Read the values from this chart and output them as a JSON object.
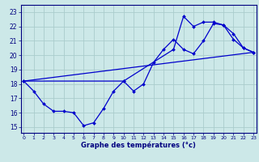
{
  "xlabel": "Graphe des températures (°c)",
  "background_color": "#cce8e8",
  "grid_color": "#aacccc",
  "line_color": "#0000cc",
  "x_ticks": [
    0,
    1,
    2,
    3,
    4,
    5,
    6,
    7,
    8,
    9,
    10,
    11,
    12,
    13,
    14,
    15,
    16,
    17,
    18,
    19,
    20,
    21,
    22,
    23
  ],
  "y_ticks": [
    15,
    16,
    17,
    18,
    19,
    20,
    21,
    22,
    23
  ],
  "xlim": [
    -0.3,
    23.3
  ],
  "ylim": [
    14.6,
    23.5
  ],
  "line1": {
    "x": [
      0,
      1,
      2,
      3,
      4,
      5,
      6,
      7,
      8,
      9,
      10,
      11,
      12,
      13,
      14,
      15,
      16,
      17,
      18,
      19,
      20,
      21,
      22,
      23
    ],
    "y": [
      18.2,
      17.5,
      16.6,
      16.1,
      16.1,
      16.0,
      15.1,
      15.3,
      16.3,
      17.5,
      18.2,
      17.5,
      18.0,
      19.5,
      20.4,
      21.1,
      20.4,
      20.1,
      21.0,
      22.2,
      22.1,
      21.5,
      20.5,
      20.2
    ]
  },
  "line2": {
    "x": [
      0,
      23
    ],
    "y": [
      18.2,
      20.2
    ]
  },
  "line3": {
    "x": [
      0,
      10,
      15,
      16,
      17,
      18,
      19,
      20,
      21,
      22,
      23
    ],
    "y": [
      18.2,
      18.2,
      20.4,
      22.7,
      22.0,
      22.3,
      22.3,
      22.1,
      21.1,
      20.5,
      20.2
    ]
  }
}
